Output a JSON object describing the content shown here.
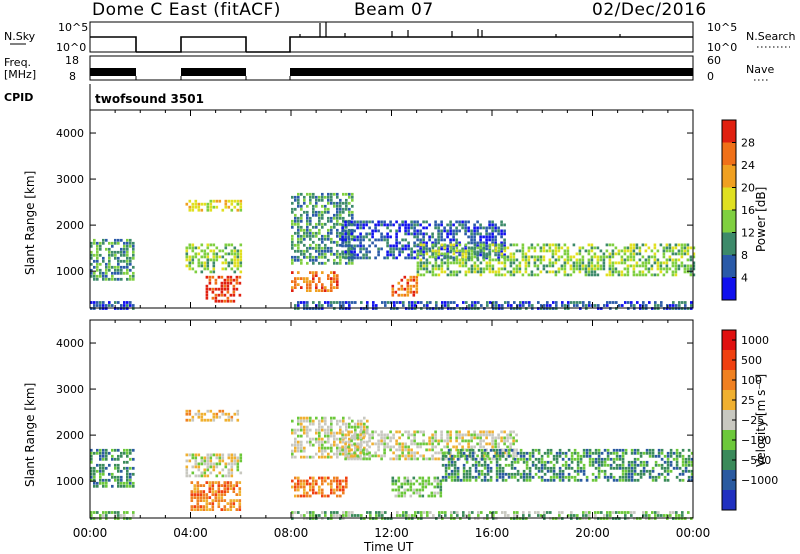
{
  "header": {
    "station": "Dome C East (fitACF)",
    "beam": "Beam 07",
    "date": "02/Dec/2016"
  },
  "sky_panel": {
    "left_label": "N.Sky",
    "right_label": "N.Search",
    "left_ticks": [
      "10^5",
      "10^0"
    ],
    "right_ticks": [
      "10^5",
      "10^0"
    ]
  },
  "freq_panel": {
    "left_label_top": "Freq.",
    "left_label_bottom": "[MHz]",
    "right_label": "Nave",
    "left_ticks": [
      "18",
      "8"
    ],
    "right_ticks": [
      "60",
      "0"
    ]
  },
  "cpid": {
    "label": "CPID",
    "value": "twofsound 3501"
  },
  "chart_data": [
    {
      "type": "heatmap",
      "parameter": "Power",
      "ylabel": "Slant Range [km]",
      "ylim": [
        200,
        4500
      ],
      "yticks": [
        "1000",
        "2000",
        "3000",
        "4000"
      ],
      "xlim_hours": [
        0,
        24
      ],
      "colorbar_label": "Power [dB]",
      "colorbar_ticks": [
        "4",
        "8",
        "12",
        "16",
        "20",
        "24",
        "28"
      ],
      "colorbar_colors": [
        "#1010ee",
        "#2a5aa8",
        "#3d8a6a",
        "#7fcf40",
        "#e0e020",
        "#f0a020",
        "#f07018",
        "#e02010"
      ],
      "echo_regions": [
        {
          "t": [
            0.0,
            1.7
          ],
          "r": [
            800,
            1700
          ],
          "level": 2
        },
        {
          "t": [
            0.0,
            1.7
          ],
          "r": [
            200,
            350
          ],
          "level": 1
        },
        {
          "t": [
            3.8,
            6.0
          ],
          "r": [
            1000,
            1600
          ],
          "level": 3
        },
        {
          "t": [
            3.8,
            6.0
          ],
          "r": [
            2300,
            2550
          ],
          "level": 4
        },
        {
          "t": [
            4.6,
            6.0
          ],
          "r": [
            350,
            900
          ],
          "level": 7
        },
        {
          "t": [
            8.0,
            9.8
          ],
          "r": [
            600,
            1000
          ],
          "level": 6
        },
        {
          "t": [
            8.0,
            10.5
          ],
          "r": [
            1200,
            2700
          ],
          "level": 2
        },
        {
          "t": [
            10.0,
            16.5
          ],
          "r": [
            1300,
            2100
          ],
          "level": 1
        },
        {
          "t": [
            12.0,
            13.0
          ],
          "r": [
            500,
            900
          ],
          "level": 6
        },
        {
          "t": [
            13.0,
            24.0
          ],
          "r": [
            900,
            1600
          ],
          "level": 3
        },
        {
          "t": [
            8.0,
            24.0
          ],
          "r": [
            200,
            350
          ],
          "level": 1
        }
      ]
    },
    {
      "type": "heatmap",
      "parameter": "Velocity",
      "ylabel": "Slant Range [km]",
      "ylim": [
        200,
        4500
      ],
      "yticks": [
        "1000",
        "2000",
        "3000",
        "4000"
      ],
      "xlim_hours": [
        0,
        24
      ],
      "xticks": [
        "00:00",
        "04:00",
        "08:00",
        "12:00",
        "16:00",
        "20:00",
        "00:00"
      ],
      "xlabel": "Time UT",
      "colorbar_label": "Velocity [m s⁻¹]",
      "colorbar_ticks": [
        "1000",
        "500",
        "100",
        "25",
        "−25",
        "−100",
        "−500",
        "−1000"
      ],
      "colorbar_colors": [
        "#2030c0",
        "#2a5aa0",
        "#3a8a5a",
        "#6cc83a",
        "#c8c8c0",
        "#f0b030",
        "#f08020",
        "#f04010",
        "#e01010"
      ],
      "echo_regions": [
        {
          "t": [
            0.0,
            1.7
          ],
          "r": [
            900,
            1700
          ],
          "level": 2
        },
        {
          "t": [
            0.0,
            1.7
          ],
          "r": [
            200,
            350
          ],
          "level": 3
        },
        {
          "t": [
            3.8,
            6.0
          ],
          "r": [
            1100,
            1600
          ],
          "level": 4
        },
        {
          "t": [
            3.8,
            6.0
          ],
          "r": [
            2300,
            2550
          ],
          "level": 5
        },
        {
          "t": [
            4.0,
            6.0
          ],
          "r": [
            400,
            1000
          ],
          "level": 6
        },
        {
          "t": [
            8.0,
            10.2
          ],
          "r": [
            650,
            1100
          ],
          "level": 6
        },
        {
          "t": [
            8.0,
            11.0
          ],
          "r": [
            1500,
            2400
          ],
          "level": 4
        },
        {
          "t": [
            10.0,
            17.0
          ],
          "r": [
            1500,
            2100
          ],
          "level": 4
        },
        {
          "t": [
            12.0,
            14.0
          ],
          "r": [
            700,
            1100
          ],
          "level": 3
        },
        {
          "t": [
            14.0,
            24.0
          ],
          "r": [
            1000,
            1700
          ],
          "level": 2
        },
        {
          "t": [
            8.0,
            24.0
          ],
          "r": [
            200,
            350
          ],
          "level": 3
        }
      ]
    }
  ]
}
